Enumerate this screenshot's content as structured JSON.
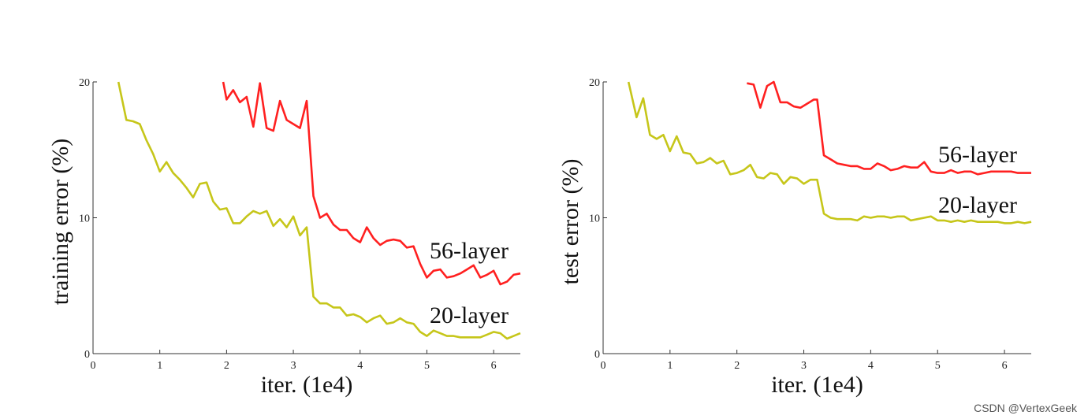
{
  "chart_data": [
    {
      "type": "line",
      "xlabel": "iter. (1e4)",
      "ylabel": "training error (%)",
      "xlim": [
        0,
        6.4
      ],
      "ylim": [
        0,
        20
      ],
      "xticks": [
        "0",
        "1",
        "2",
        "3",
        "4",
        "5",
        "6"
      ],
      "yticks": [
        "0",
        "10",
        "20"
      ],
      "series": [
        {
          "name": "56-layer",
          "color": "#ff2020",
          "x": [
            1.95,
            2.0,
            2.1,
            2.2,
            2.3,
            2.4,
            2.5,
            2.6,
            2.7,
            2.8,
            2.9,
            3.0,
            3.1,
            3.2,
            3.3,
            3.4,
            3.5,
            3.6,
            3.7,
            3.8,
            3.9,
            4.0,
            4.1,
            4.2,
            4.3,
            4.4,
            4.5,
            4.6,
            4.7,
            4.8,
            4.9,
            5.0,
            5.1,
            5.2,
            5.3,
            5.4,
            5.5,
            5.6,
            5.7,
            5.8,
            5.9,
            6.0,
            6.1,
            6.2,
            6.3,
            6.4
          ],
          "y": [
            20.0,
            18.7,
            19.4,
            18.5,
            18.9,
            16.7,
            19.9,
            16.6,
            16.4,
            18.6,
            17.2,
            16.9,
            16.6,
            18.6,
            11.6,
            10.0,
            10.3,
            9.5,
            9.1,
            9.1,
            8.5,
            8.2,
            9.3,
            8.5,
            8.0,
            8.3,
            8.4,
            8.3,
            7.8,
            7.9,
            6.6,
            5.6,
            6.1,
            6.2,
            5.6,
            5.7,
            5.9,
            6.2,
            6.5,
            5.6,
            5.8,
            6.1,
            5.1,
            5.3,
            5.8,
            5.9
          ]
        },
        {
          "name": "20-layer",
          "color": "#c6c61a",
          "x": [
            0.38,
            0.5,
            0.6,
            0.7,
            0.8,
            0.9,
            1.0,
            1.1,
            1.2,
            1.3,
            1.4,
            1.5,
            1.6,
            1.7,
            1.8,
            1.9,
            2.0,
            2.1,
            2.2,
            2.3,
            2.4,
            2.5,
            2.6,
            2.7,
            2.8,
            2.9,
            3.0,
            3.1,
            3.2,
            3.3,
            3.4,
            3.5,
            3.6,
            3.7,
            3.8,
            3.9,
            4.0,
            4.1,
            4.2,
            4.3,
            4.4,
            4.5,
            4.6,
            4.7,
            4.8,
            4.9,
            5.0,
            5.1,
            5.2,
            5.3,
            5.4,
            5.5,
            5.6,
            5.7,
            5.8,
            5.9,
            6.0,
            6.1,
            6.2,
            6.3,
            6.4
          ],
          "y": [
            20.0,
            17.2,
            17.1,
            16.9,
            15.7,
            14.7,
            13.4,
            14.1,
            13.3,
            12.8,
            12.2,
            11.5,
            12.5,
            12.6,
            11.2,
            10.6,
            10.7,
            9.6,
            9.6,
            10.1,
            10.5,
            10.3,
            10.5,
            9.4,
            9.9,
            9.3,
            10.1,
            8.7,
            9.3,
            4.2,
            3.7,
            3.7,
            3.4,
            3.4,
            2.8,
            2.9,
            2.7,
            2.3,
            2.6,
            2.8,
            2.2,
            2.3,
            2.6,
            2.3,
            2.2,
            1.6,
            1.3,
            1.7,
            1.5,
            1.3,
            1.3,
            1.2,
            1.2,
            1.2,
            1.2,
            1.4,
            1.6,
            1.5,
            1.1,
            1.3,
            1.5
          ]
        }
      ]
    },
    {
      "type": "line",
      "xlabel": "iter. (1e4)",
      "ylabel": "test error (%)",
      "xlim": [
        0,
        6.4
      ],
      "ylim": [
        0,
        20
      ],
      "xticks": [
        "0",
        "1",
        "2",
        "3",
        "4",
        "5",
        "6"
      ],
      "yticks": [
        "0",
        "10",
        "20"
      ],
      "series": [
        {
          "name": "56-layer",
          "color": "#ff2020",
          "x": [
            2.15,
            2.25,
            2.35,
            2.45,
            2.55,
            2.65,
            2.75,
            2.85,
            2.95,
            3.05,
            3.15,
            3.2,
            3.3,
            3.4,
            3.5,
            3.6,
            3.7,
            3.8,
            3.9,
            4.0,
            4.1,
            4.2,
            4.3,
            4.4,
            4.5,
            4.6,
            4.7,
            4.8,
            4.9,
            5.0,
            5.1,
            5.2,
            5.3,
            5.4,
            5.5,
            5.6,
            5.7,
            5.8,
            5.9,
            6.0,
            6.1,
            6.2,
            6.3,
            6.4
          ],
          "y": [
            19.9,
            19.8,
            18.1,
            19.7,
            20.0,
            18.5,
            18.5,
            18.2,
            18.1,
            18.4,
            18.7,
            18.7,
            14.6,
            14.3,
            14.0,
            13.9,
            13.8,
            13.8,
            13.6,
            13.6,
            14.0,
            13.8,
            13.5,
            13.6,
            13.8,
            13.7,
            13.7,
            14.1,
            13.4,
            13.3,
            13.3,
            13.5,
            13.3,
            13.4,
            13.4,
            13.2,
            13.3,
            13.4,
            13.4,
            13.4,
            13.4,
            13.3,
            13.3,
            13.3
          ]
        },
        {
          "name": "20-layer",
          "color": "#c6c61a",
          "x": [
            0.38,
            0.5,
            0.6,
            0.7,
            0.8,
            0.9,
            1.0,
            1.1,
            1.2,
            1.3,
            1.4,
            1.5,
            1.6,
            1.7,
            1.8,
            1.9,
            2.0,
            2.1,
            2.2,
            2.3,
            2.4,
            2.5,
            2.6,
            2.7,
            2.8,
            2.9,
            3.0,
            3.1,
            3.2,
            3.3,
            3.4,
            3.5,
            3.6,
            3.7,
            3.8,
            3.9,
            4.0,
            4.1,
            4.2,
            4.3,
            4.4,
            4.5,
            4.6,
            4.7,
            4.8,
            4.9,
            5.0,
            5.1,
            5.2,
            5.3,
            5.4,
            5.5,
            5.6,
            5.7,
            5.8,
            5.9,
            6.0,
            6.1,
            6.2,
            6.3,
            6.4
          ],
          "y": [
            20.0,
            17.4,
            18.8,
            16.1,
            15.8,
            16.1,
            14.9,
            16.0,
            14.8,
            14.7,
            14.0,
            14.1,
            14.4,
            14.0,
            14.2,
            13.2,
            13.3,
            13.5,
            13.9,
            13.0,
            12.9,
            13.3,
            13.2,
            12.5,
            13.0,
            12.9,
            12.5,
            12.8,
            12.8,
            10.3,
            10.0,
            9.9,
            9.9,
            9.9,
            9.8,
            10.1,
            10.0,
            10.1,
            10.1,
            10.0,
            10.1,
            10.1,
            9.8,
            9.9,
            10.0,
            10.1,
            9.8,
            9.8,
            9.7,
            9.8,
            9.7,
            9.8,
            9.7,
            9.7,
            9.7,
            9.7,
            9.6,
            9.6,
            9.7,
            9.6,
            9.7
          ]
        }
      ]
    }
  ],
  "watermark": "CSDN @VertexGeek"
}
